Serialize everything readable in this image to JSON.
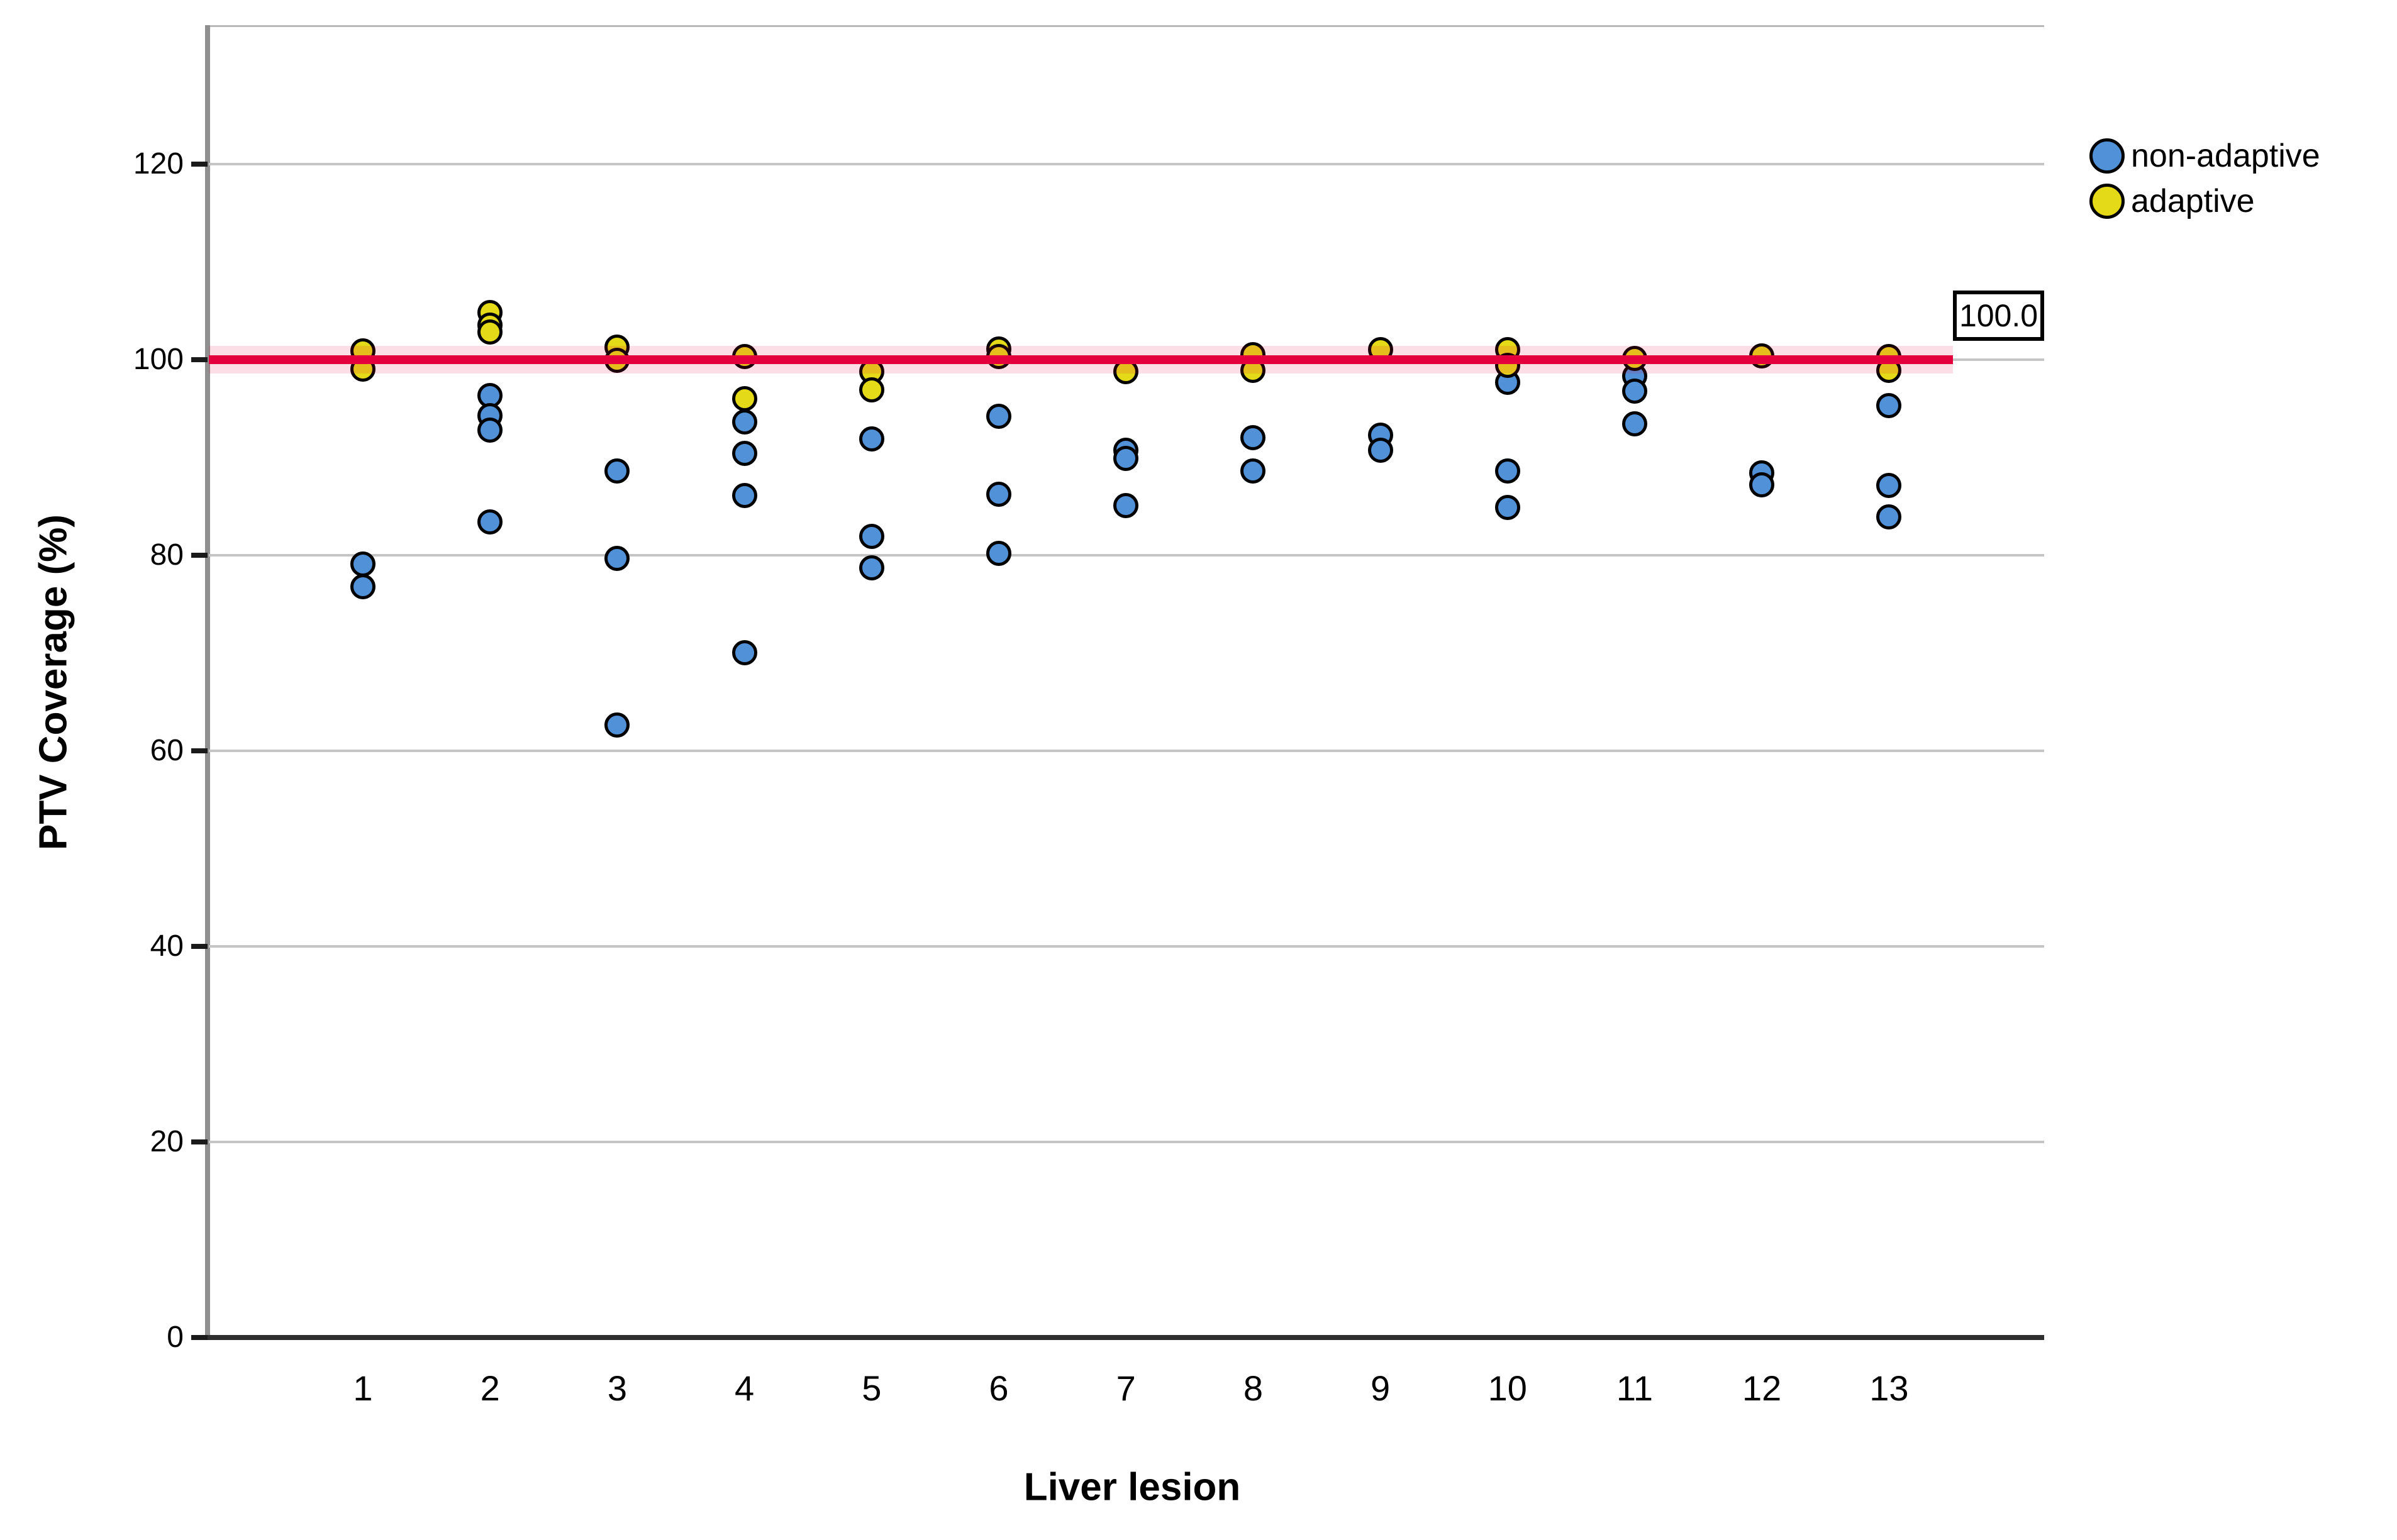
{
  "chart_data": {
    "type": "scatter",
    "title": "",
    "xlabel": "Liver lesion",
    "ylabel": "PTV Coverage (%)",
    "categories": [
      1,
      2,
      3,
      4,
      5,
      6,
      7,
      8,
      9,
      10,
      11,
      12,
      13
    ],
    "yticks": [
      0,
      20,
      40,
      60,
      80,
      100,
      120
    ],
    "ylim": [
      0,
      134.2
    ],
    "grid": true,
    "legend_position": "top-right",
    "reference_line": {
      "y": 100.0,
      "label": "100.0",
      "color": "#e4003c"
    },
    "series": [
      {
        "name": "non-adaptive",
        "color": "#5191d8",
        "points": [
          {
            "x": 1,
            "y": 79.1
          },
          {
            "x": 1,
            "y": 76.8
          },
          {
            "x": 2,
            "y": 96.3
          },
          {
            "x": 2,
            "y": 94.3
          },
          {
            "x": 2,
            "y": 92.8
          },
          {
            "x": 2,
            "y": 83.4
          },
          {
            "x": 3,
            "y": 88.6
          },
          {
            "x": 3,
            "y": 79.7
          },
          {
            "x": 3,
            "y": 62.6
          },
          {
            "x": 4,
            "y": 93.6
          },
          {
            "x": 4,
            "y": 90.4
          },
          {
            "x": 4,
            "y": 86.1
          },
          {
            "x": 4,
            "y": 70.0
          },
          {
            "x": 5,
            "y": 91.9
          },
          {
            "x": 5,
            "y": 81.9
          },
          {
            "x": 5,
            "y": 78.7
          },
          {
            "x": 6,
            "y": 94.2
          },
          {
            "x": 6,
            "y": 86.2
          },
          {
            "x": 6,
            "y": 80.2
          },
          {
            "x": 7,
            "y": 90.7
          },
          {
            "x": 7,
            "y": 89.9
          },
          {
            "x": 7,
            "y": 85.1
          },
          {
            "x": 8,
            "y": 92.0
          },
          {
            "x": 8,
            "y": 88.6
          },
          {
            "x": 9,
            "y": 92.3
          },
          {
            "x": 9,
            "y": 90.7
          },
          {
            "x": 10,
            "y": 97.7
          },
          {
            "x": 10,
            "y": 88.6
          },
          {
            "x": 10,
            "y": 84.9
          },
          {
            "x": 11,
            "y": 98.3
          },
          {
            "x": 11,
            "y": 96.8
          },
          {
            "x": 11,
            "y": 93.4
          },
          {
            "x": 12,
            "y": 88.4
          },
          {
            "x": 12,
            "y": 87.2
          },
          {
            "x": 13,
            "y": 95.3
          },
          {
            "x": 13,
            "y": 87.1
          },
          {
            "x": 13,
            "y": 83.9
          }
        ]
      },
      {
        "name": "adaptive",
        "color": "#e5da17",
        "points": [
          {
            "x": 1,
            "y": 100.9
          },
          {
            "x": 1,
            "y": 99.0
          },
          {
            "x": 2,
            "y": 104.8
          },
          {
            "x": 2,
            "y": 103.5
          },
          {
            "x": 2,
            "y": 102.8
          },
          {
            "x": 3,
            "y": 101.3
          },
          {
            "x": 3,
            "y": 99.9
          },
          {
            "x": 4,
            "y": 100.3
          },
          {
            "x": 4,
            "y": 96.0
          },
          {
            "x": 5,
            "y": 98.8
          },
          {
            "x": 5,
            "y": 96.9
          },
          {
            "x": 6,
            "y": 101.1
          },
          {
            "x": 6,
            "y": 100.3
          },
          {
            "x": 7,
            "y": 98.8
          },
          {
            "x": 8,
            "y": 100.5
          },
          {
            "x": 8,
            "y": 98.9
          },
          {
            "x": 9,
            "y": 101.0
          },
          {
            "x": 10,
            "y": 101.0
          },
          {
            "x": 10,
            "y": 99.4
          },
          {
            "x": 11,
            "y": 100.1
          },
          {
            "x": 12,
            "y": 100.4
          },
          {
            "x": 13,
            "y": 100.3
          },
          {
            "x": 13,
            "y": 98.9
          }
        ]
      }
    ],
    "legend": [
      {
        "label": "non-adaptive",
        "color": "#5191d8"
      },
      {
        "label": "adaptive",
        "color": "#e5da17"
      }
    ]
  }
}
